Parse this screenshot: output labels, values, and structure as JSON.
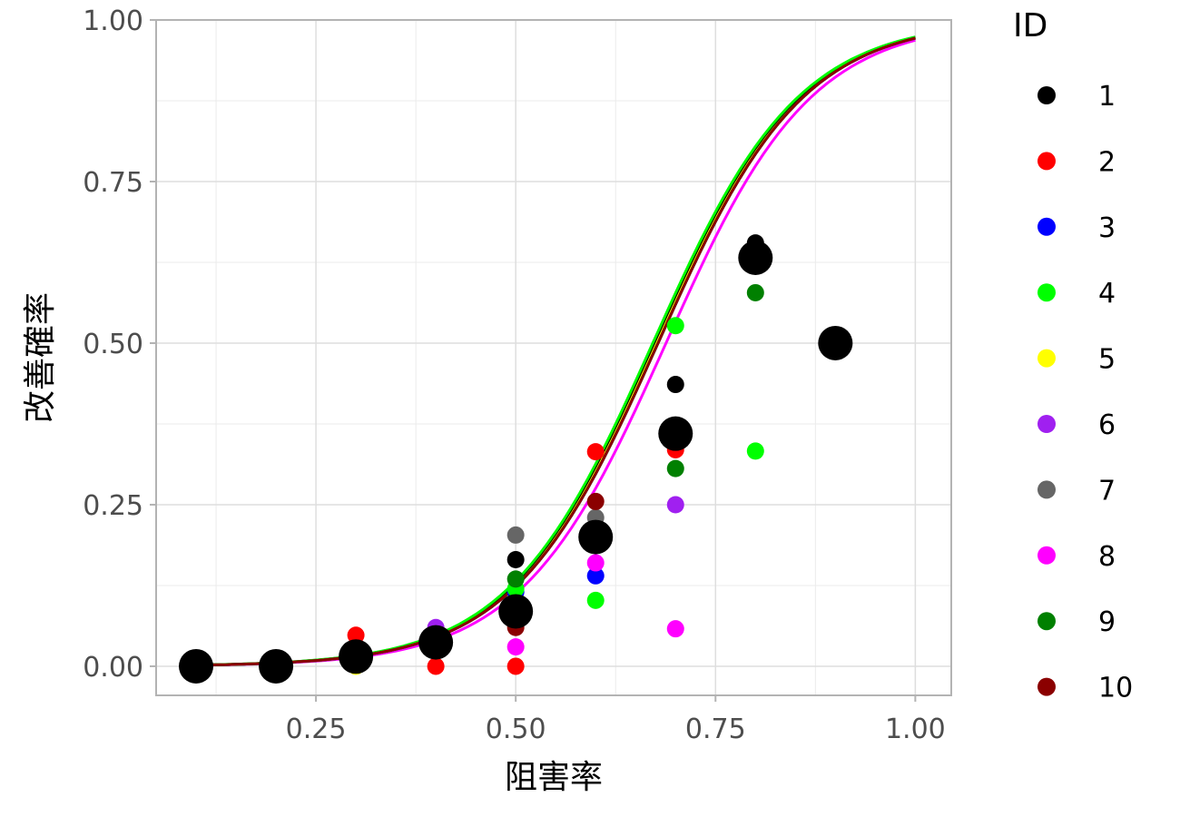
{
  "chart_data": {
    "type": "scatter",
    "xlabel": "阻害率",
    "ylabel": "改善確率",
    "xlim": [
      0.05,
      1.045
    ],
    "ylim": [
      -0.045,
      1.0
    ],
    "grid": true,
    "x_ticks": [
      "0.25",
      "0.50",
      "0.75",
      "1.00"
    ],
    "x_tick_values": [
      0.25,
      0.5,
      0.75,
      1.0
    ],
    "y_ticks": [
      "0.00",
      "0.25",
      "0.50",
      "0.75",
      "1.00"
    ],
    "y_tick_values": [
      0.0,
      0.25,
      0.5,
      0.75,
      1.0
    ],
    "legend": {
      "title": "ID",
      "placement": "right",
      "entries": [
        {
          "label": "1",
          "color": "#000000"
        },
        {
          "label": "2",
          "color": "#ff0000"
        },
        {
          "label": "3",
          "color": "#0000ff"
        },
        {
          "label": "4",
          "color": "#00ff00"
        },
        {
          "label": "5",
          "color": "#ffff00"
        },
        {
          "label": "6",
          "color": "#a020f0"
        },
        {
          "label": "7",
          "color": "#666666"
        },
        {
          "label": "8",
          "color": "#ff00ff"
        },
        {
          "label": "9",
          "color": "#008000"
        },
        {
          "label": "10",
          "color": "#8b0000"
        }
      ]
    },
    "series": [
      {
        "name": "1",
        "color": "#000000",
        "curve_offset": -0.05,
        "points": [
          [
            0.5,
            0.165
          ],
          [
            0.7,
            0.436
          ],
          [
            0.8,
            0.655
          ]
        ]
      },
      {
        "name": "2",
        "color": "#ff0000",
        "curve_offset": -0.02,
        "points": [
          [
            0.3,
            0.048
          ],
          [
            0.4,
            0.0
          ],
          [
            0.5,
            0.0
          ],
          [
            0.6,
            0.332
          ],
          [
            0.7,
            0.335
          ],
          [
            0.8,
            0.62
          ]
        ]
      },
      {
        "name": "3",
        "color": "#0000ff",
        "curve_offset": 0.0,
        "points": [
          [
            0.5,
            0.115
          ],
          [
            0.6,
            0.14
          ]
        ]
      },
      {
        "name": "4",
        "color": "#00ff00",
        "curve_offset": -0.065,
        "points": [
          [
            0.5,
            0.12
          ],
          [
            0.6,
            0.102
          ],
          [
            0.7,
            0.527
          ],
          [
            0.8,
            0.333
          ]
        ]
      },
      {
        "name": "5",
        "color": "#ffff00",
        "curve_offset": -0.03,
        "points": [
          [
            0.3,
            0.0
          ],
          [
            0.5,
            0.07
          ]
        ]
      },
      {
        "name": "6",
        "color": "#a020f0",
        "curve_offset": 0.0,
        "points": [
          [
            0.4,
            0.06
          ],
          [
            0.7,
            0.25
          ]
        ]
      },
      {
        "name": "7",
        "color": "#666666",
        "curve_offset": 0.0,
        "points": [
          [
            0.5,
            0.203
          ],
          [
            0.6,
            0.23
          ]
        ]
      },
      {
        "name": "8",
        "color": "#ff00ff",
        "curve_offset": 0.1,
        "points": [
          [
            0.5,
            0.03
          ],
          [
            0.6,
            0.16
          ],
          [
            0.7,
            0.058
          ]
        ]
      },
      {
        "name": "9",
        "color": "#008000",
        "curve_offset": 0.0,
        "points": [
          [
            0.5,
            0.135
          ],
          [
            0.7,
            0.306
          ],
          [
            0.8,
            0.578
          ]
        ]
      },
      {
        "name": "10",
        "color": "#8b0000",
        "curve_offset": 0.0,
        "points": [
          [
            0.5,
            0.06
          ],
          [
            0.6,
            0.255
          ]
        ]
      }
    ],
    "pooled_points": {
      "color": "#000000",
      "points": [
        [
          0.1,
          0.0
        ],
        [
          0.2,
          0.0
        ],
        [
          0.3,
          0.015
        ],
        [
          0.4,
          0.037
        ],
        [
          0.5,
          0.085
        ],
        [
          0.6,
          0.2
        ],
        [
          0.7,
          0.36
        ],
        [
          0.8,
          0.632
        ],
        [
          0.9,
          0.5
        ]
      ]
    },
    "fit_curve": {
      "type": "logistic",
      "center": 0.678,
      "slope": 11.0
    }
  }
}
